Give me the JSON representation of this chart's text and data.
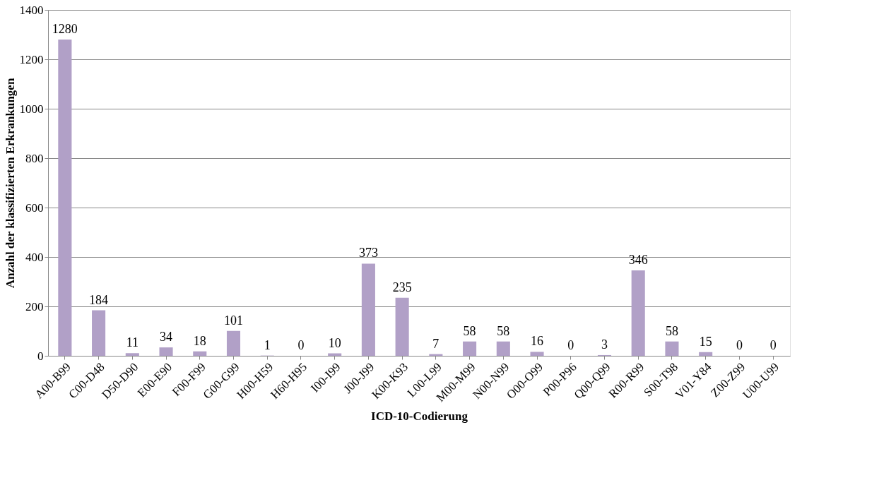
{
  "chart_data": {
    "type": "bar",
    "xlabel": "ICD-10-Codierung",
    "ylabel": "Anzahl der klassifizierten Erkrankungen",
    "categories": [
      "A00-B99",
      "C00-D48",
      "D50-D90",
      "E00-E90",
      "F00-F99",
      "G00-G99",
      "H00-H59",
      "H60-H95",
      "I00-I99",
      "J00-J99",
      "K00-K93",
      "L00-L99",
      "M00-M99",
      "N00-N99",
      "O00-O99",
      "P00-P96",
      "Q00-Q99",
      "R00-R99",
      "S00-T98",
      "V01-Y84",
      "Z00-Z99",
      "U00-U99"
    ],
    "values": [
      1280,
      184,
      11,
      34,
      18,
      101,
      1,
      0,
      10,
      373,
      235,
      7,
      58,
      58,
      16,
      0,
      3,
      346,
      58,
      15,
      0,
      0
    ],
    "color": "#b1a0c7",
    "ylim": [
      0,
      1400
    ],
    "yticks": [
      0,
      200,
      400,
      600,
      800,
      1000,
      1200,
      1400
    ],
    "grid": "y",
    "data_labels": true
  }
}
